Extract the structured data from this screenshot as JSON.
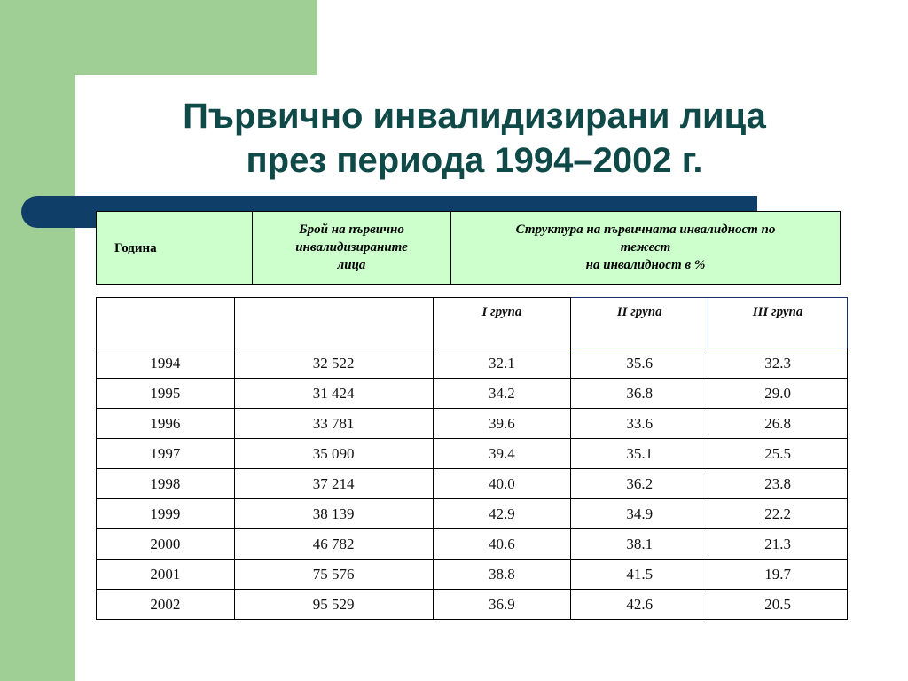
{
  "title": {
    "line1": "Първично инвалидизирани лица",
    "line2": "през периода 1994–2002 г."
  },
  "header": {
    "year": "Година",
    "count": [
      "Брой на първично",
      "инвалидизираните",
      "лица"
    ],
    "structure": [
      "Структура на първичната инвалидност по",
      "тежест",
      "на инвалидност в %"
    ]
  },
  "groups": [
    "I група",
    "II група",
    "III група"
  ],
  "rows": [
    [
      "1994",
      "32 522",
      "32.1",
      "35.6",
      "32.3"
    ],
    [
      "1995",
      "31 424",
      "34.2",
      "36.8",
      "29.0"
    ],
    [
      "1996",
      "33 781",
      "39.6",
      "33.6",
      "26.8"
    ],
    [
      "1997",
      "35 090",
      "39.4",
      "35.1",
      "25.5"
    ],
    [
      "1998",
      "37 214",
      "40.0",
      "36.2",
      "23.8"
    ],
    [
      "1999",
      "38 139",
      "42.9",
      "34.9",
      "22.2"
    ],
    [
      "2000",
      "46 782",
      "40.6",
      "38.1",
      "21.3"
    ],
    [
      "2001",
      "75 576",
      "38.8",
      "41.5",
      "19.7"
    ],
    [
      "2002",
      "95 529",
      "36.9",
      "42.6",
      "20.5"
    ]
  ],
  "colors": {
    "accent_green": "#9fcf94",
    "bar_navy": "#0f3e68",
    "title_text": "#0f4a48",
    "header_fill": "#ccffcc"
  }
}
